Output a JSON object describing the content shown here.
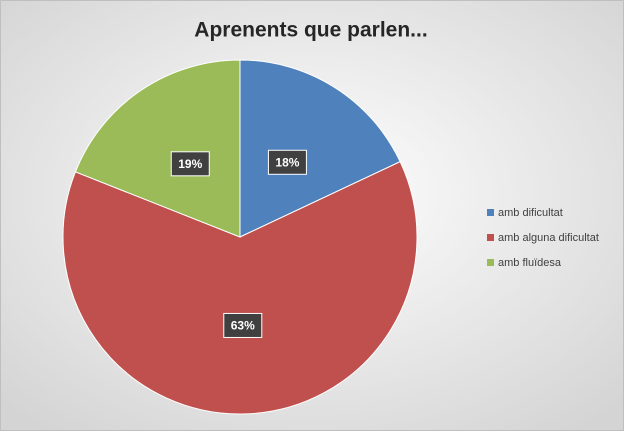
{
  "chart_data": {
    "type": "pie",
    "title": "Aprenents que parlen...",
    "categories": [
      "amb dificultat",
      "amb alguna dificultat",
      "amb fluïdesa"
    ],
    "values": [
      18,
      63,
      19
    ],
    "value_labels": [
      "18%",
      "63%",
      "19%"
    ],
    "colors": [
      "#4f81bd",
      "#c0504d",
      "#9bbb59"
    ],
    "legend": "right"
  }
}
